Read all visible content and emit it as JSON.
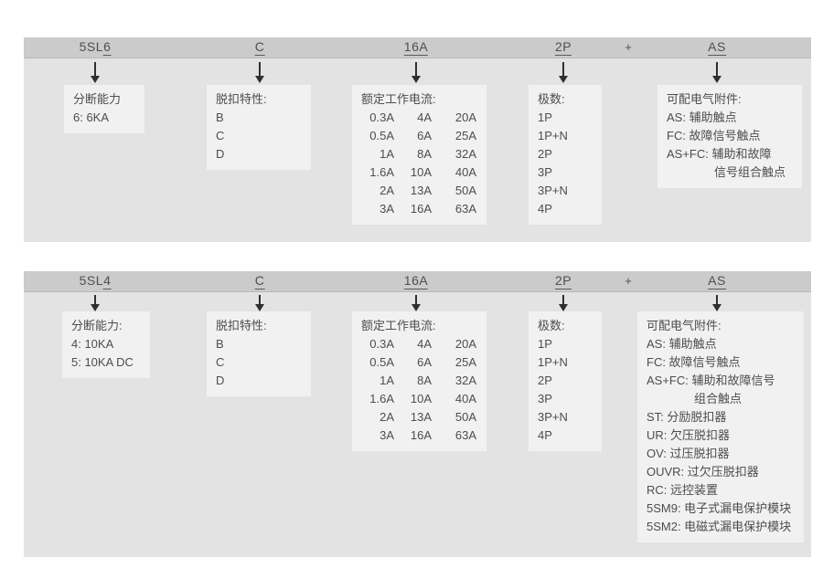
{
  "colors": {
    "header_bar": "#cbcbcb",
    "panel_bg": "#e3e3e3",
    "box_bg": "#f1f1f1",
    "text": "#4d4d4d",
    "arrow": "#2e2e2e"
  },
  "sections": [
    {
      "code": {
        "prefix": "5SL",
        "key": "6",
        "trip": "C",
        "current": "16A",
        "poles": "2P",
        "plus": "+",
        "accessory": "AS"
      },
      "boxes": {
        "breaking": {
          "title": "分断能力",
          "lines": [
            "6: 6KA"
          ]
        },
        "trip": {
          "title": "脱扣特性:",
          "lines": [
            "B",
            "C",
            "D"
          ]
        },
        "current": {
          "title": "额定工作电流:",
          "rows": [
            [
              "0.3A",
              "4A",
              "20A"
            ],
            [
              "0.5A",
              "6A",
              "25A"
            ],
            [
              "1A",
              "8A",
              "32A"
            ],
            [
              "1.6A",
              "10A",
              "40A"
            ],
            [
              "2A",
              "13A",
              "50A"
            ],
            [
              "3A",
              "16A",
              "63A"
            ]
          ]
        },
        "poles": {
          "title": "极数:",
          "lines": [
            "1P",
            "1P+N",
            "2P",
            "3P",
            "3P+N",
            "4P"
          ]
        },
        "accessory": {
          "title": "可配电气附件:",
          "lines": [
            "AS: 辅助触点",
            "FC: 故障信号触点",
            "AS+FC: 辅助和故障",
            {
              "text": "信号组合触点",
              "indent": true
            }
          ]
        }
      }
    },
    {
      "code": {
        "prefix": "5SL",
        "key": "4",
        "trip": "C",
        "current": "16A",
        "poles": "2P",
        "plus": "+",
        "accessory": "AS"
      },
      "boxes": {
        "breaking": {
          "title": "分断能力:",
          "lines": [
            "4: 10KA",
            "5: 10KA DC"
          ]
        },
        "trip": {
          "title": "脱扣特性:",
          "lines": [
            "B",
            "C",
            "D"
          ]
        },
        "current": {
          "title": "额定工作电流:",
          "rows": [
            [
              "0.3A",
              "4A",
              "20A"
            ],
            [
              "0.5A",
              "6A",
              "25A"
            ],
            [
              "1A",
              "8A",
              "32A"
            ],
            [
              "1.6A",
              "10A",
              "40A"
            ],
            [
              "2A",
              "13A",
              "50A"
            ],
            [
              "3A",
              "16A",
              "63A"
            ]
          ]
        },
        "poles": {
          "title": "极数:",
          "lines": [
            "1P",
            "1P+N",
            "2P",
            "3P",
            "3P+N",
            "4P"
          ]
        },
        "accessory": {
          "title": "可配电气附件:",
          "lines": [
            "AS: 辅助触点",
            "FC: 故障信号触点",
            "AS+FC: 辅助和故障信号",
            {
              "text": "组合触点",
              "indent": true
            },
            "ST: 分励脱扣器",
            "UR: 欠压脱扣器",
            "OV: 过压脱扣器",
            "OUVR: 过欠压脱扣器",
            "RC: 远控装置",
            "5SM9: 电子式漏电保护模块",
            "5SM2: 电磁式漏电保护模块"
          ]
        }
      }
    }
  ]
}
